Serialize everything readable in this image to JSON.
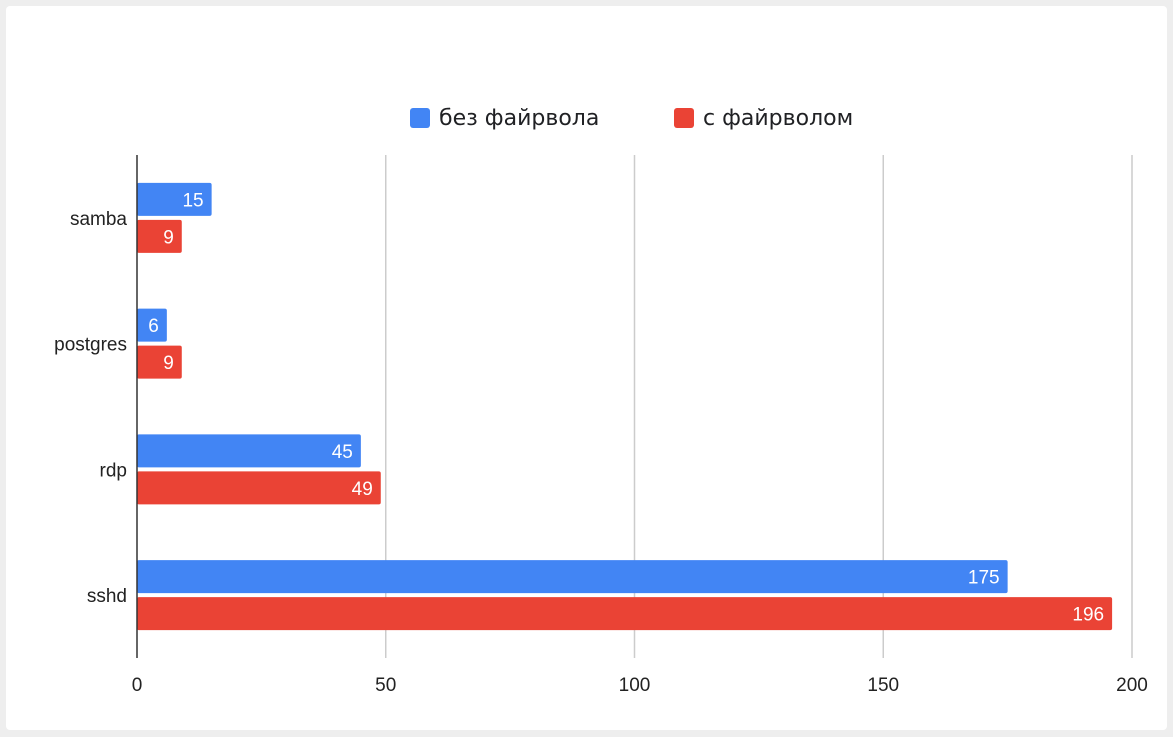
{
  "chart_data": {
    "type": "bar",
    "orientation": "horizontal",
    "categories": [
      "samba",
      "postgres",
      "rdp",
      "sshd"
    ],
    "series": [
      {
        "name": "без файрвола",
        "color": "#4285f4",
        "values": [
          15,
          6,
          45,
          175
        ]
      },
      {
        "name": "с файрволом",
        "color": "#ea4335",
        "values": [
          9,
          9,
          49,
          196
        ]
      }
    ],
    "xlim": [
      0,
      200
    ],
    "xticks": [
      "0",
      "50",
      "100",
      "150",
      "200"
    ],
    "grid": true,
    "legend_position": "top",
    "data_labels": true
  }
}
